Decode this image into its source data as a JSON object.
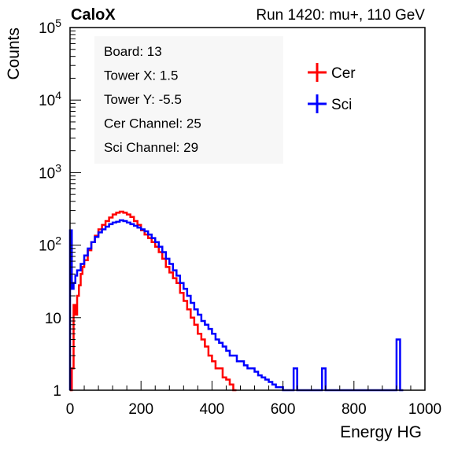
{
  "header": {
    "experiment": "CaloX",
    "run_info": "Run 1420: mu+, 110 GeV"
  },
  "info_box": {
    "lines": [
      "Board: 13",
      "Tower X: 1.5",
      "Tower Y: -5.5",
      "Cer Channel: 25",
      "Sci Channel: 29"
    ]
  },
  "colors": {
    "cer": "#ff0000",
    "sci": "#0000ff",
    "axis": "#000000",
    "box_bg": "#f7f7f7"
  },
  "chart_data": {
    "type": "line",
    "style": "step-histogram",
    "title": "",
    "xlabel": "Energy HG",
    "ylabel": "Counts",
    "xlim": [
      0,
      1000
    ],
    "ylim": [
      1,
      100000
    ],
    "yscale": "log",
    "grid": false,
    "legend_position": "top-right",
    "x_ticks": [
      0,
      200,
      400,
      600,
      800,
      1000
    ],
    "x_tick_labels": [
      "0",
      "200",
      "400",
      "600",
      "800",
      "1000"
    ],
    "y_tick_labels": [
      {
        "base": "1",
        "exp": "",
        "value": 1
      },
      {
        "base": "10",
        "exp": "",
        "value": 10
      },
      {
        "base": "10",
        "exp": "2",
        "value": 100
      },
      {
        "base": "10",
        "exp": "3",
        "value": 1000
      },
      {
        "base": "10",
        "exp": "4",
        "value": 10000
      },
      {
        "base": "10",
        "exp": "5",
        "value": 100000
      }
    ],
    "series": [
      {
        "name": "Cer",
        "color": "#ff0000",
        "points": [
          [
            0,
            1
          ],
          [
            5,
            2
          ],
          [
            10,
            15
          ],
          [
            15,
            11
          ],
          [
            20,
            20
          ],
          [
            25,
            28
          ],
          [
            30,
            40
          ],
          [
            35,
            50
          ],
          [
            40,
            62
          ],
          [
            50,
            85
          ],
          [
            60,
            110
          ],
          [
            70,
            135
          ],
          [
            80,
            165
          ],
          [
            90,
            190
          ],
          [
            100,
            215
          ],
          [
            110,
            240
          ],
          [
            120,
            265
          ],
          [
            130,
            280
          ],
          [
            140,
            290
          ],
          [
            150,
            280
          ],
          [
            160,
            265
          ],
          [
            170,
            245
          ],
          [
            180,
            215
          ],
          [
            190,
            190
          ],
          [
            200,
            160
          ],
          [
            210,
            140
          ],
          [
            220,
            125
          ],
          [
            230,
            110
          ],
          [
            240,
            95
          ],
          [
            250,
            80
          ],
          [
            260,
            65
          ],
          [
            270,
            50
          ],
          [
            280,
            42
          ],
          [
            290,
            35
          ],
          [
            300,
            30
          ],
          [
            310,
            22
          ],
          [
            320,
            17
          ],
          [
            330,
            13
          ],
          [
            340,
            10
          ],
          [
            350,
            8
          ],
          [
            360,
            6
          ],
          [
            370,
            5
          ],
          [
            380,
            4
          ],
          [
            390,
            3
          ],
          [
            400,
            2.5
          ],
          [
            410,
            2
          ],
          [
            420,
            2
          ],
          [
            430,
            1.5
          ],
          [
            440,
            1.4
          ],
          [
            450,
            1.2
          ],
          [
            460,
            1
          ]
        ]
      },
      {
        "name": "Sci",
        "color": "#0000ff",
        "points": [
          [
            0,
            160
          ],
          [
            5,
            25
          ],
          [
            10,
            30
          ],
          [
            15,
            38
          ],
          [
            20,
            45
          ],
          [
            30,
            55
          ],
          [
            40,
            72
          ],
          [
            50,
            90
          ],
          [
            60,
            110
          ],
          [
            70,
            130
          ],
          [
            80,
            150
          ],
          [
            90,
            165
          ],
          [
            100,
            180
          ],
          [
            110,
            195
          ],
          [
            120,
            205
          ],
          [
            130,
            210
          ],
          [
            140,
            220
          ],
          [
            150,
            215
          ],
          [
            160,
            205
          ],
          [
            170,
            195
          ],
          [
            180,
            185
          ],
          [
            190,
            175
          ],
          [
            200,
            165
          ],
          [
            210,
            155
          ],
          [
            220,
            140
          ],
          [
            230,
            125
          ],
          [
            240,
            110
          ],
          [
            250,
            95
          ],
          [
            260,
            80
          ],
          [
            270,
            65
          ],
          [
            280,
            55
          ],
          [
            290,
            45
          ],
          [
            300,
            38
          ],
          [
            310,
            30
          ],
          [
            320,
            25
          ],
          [
            330,
            20
          ],
          [
            340,
            16
          ],
          [
            350,
            13
          ],
          [
            360,
            11
          ],
          [
            370,
            9
          ],
          [
            380,
            8
          ],
          [
            390,
            7
          ],
          [
            400,
            6
          ],
          [
            410,
            5
          ],
          [
            420,
            4.5
          ],
          [
            430,
            4
          ],
          [
            440,
            3.5
          ],
          [
            450,
            3
          ],
          [
            460,
            3
          ],
          [
            470,
            2.5
          ],
          [
            480,
            2.5
          ],
          [
            490,
            2.2
          ],
          [
            500,
            2
          ],
          [
            510,
            2
          ],
          [
            520,
            1.8
          ],
          [
            530,
            1.6
          ],
          [
            540,
            1.5
          ],
          [
            550,
            1.4
          ],
          [
            560,
            1.3
          ],
          [
            570,
            1.2
          ],
          [
            580,
            1.1
          ],
          [
            600,
            1
          ],
          [
            630,
            2
          ],
          [
            640,
            1
          ],
          [
            710,
            2
          ],
          [
            720,
            1
          ],
          [
            920,
            5
          ],
          [
            930,
            1
          ]
        ]
      }
    ]
  }
}
